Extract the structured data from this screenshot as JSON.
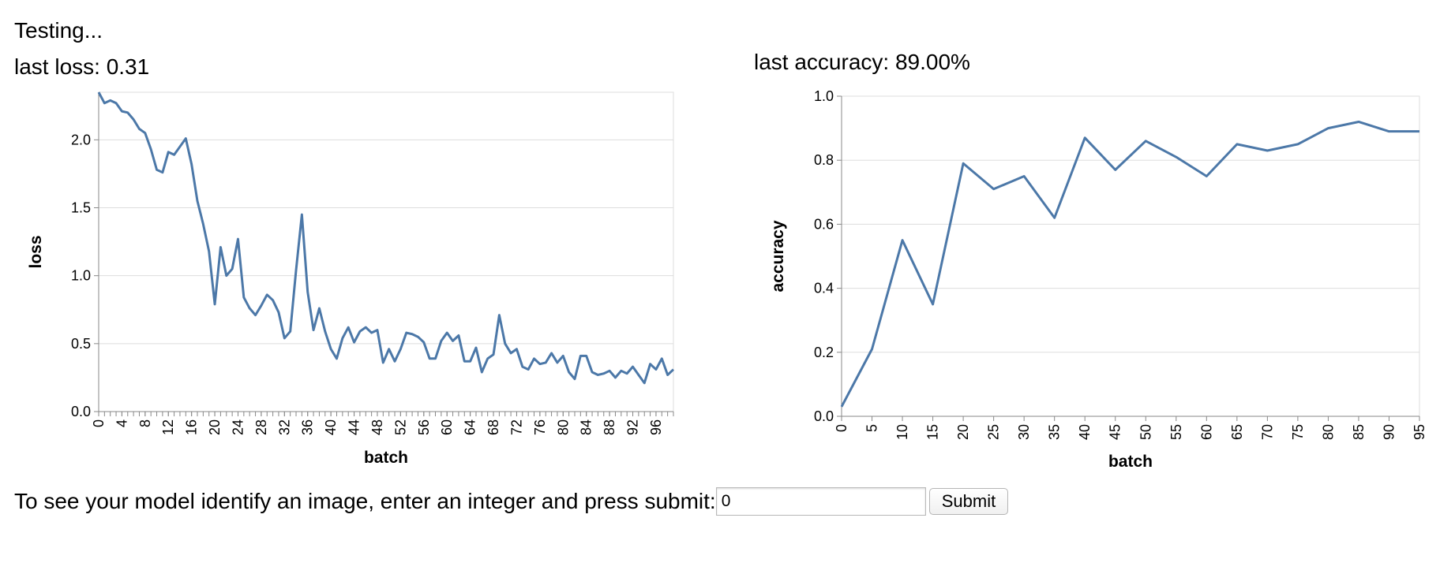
{
  "status": "Testing...",
  "loss_metric": "last loss: 0.31",
  "accuracy_metric": "last accuracy: 89.00%",
  "prompt": {
    "label": "To see your model identify an image, enter an integer and press submit:",
    "input_value": "0",
    "submit_label": "Submit"
  },
  "colors": {
    "line": "#4c78a8",
    "grid": "#dddddd",
    "axis": "#888888"
  },
  "chart_data": [
    {
      "type": "line",
      "xlabel": "batch",
      "ylabel": "loss",
      "xlim": [
        0,
        99
      ],
      "ylim": [
        0,
        2.35
      ],
      "x_ticks": [
        0,
        4,
        8,
        12,
        16,
        20,
        24,
        28,
        32,
        36,
        40,
        44,
        48,
        52,
        56,
        60,
        64,
        68,
        72,
        76,
        80,
        84,
        88,
        92,
        96
      ],
      "y_ticks": [
        0.0,
        0.5,
        1.0,
        1.5,
        2.0
      ],
      "y_tick_labels": [
        "0.0",
        "0.5",
        "1.0",
        "1.5",
        "2.0"
      ],
      "grid": true,
      "x": [
        0,
        1,
        2,
        3,
        4,
        5,
        6,
        7,
        8,
        9,
        10,
        11,
        12,
        13,
        14,
        15,
        16,
        17,
        18,
        19,
        20,
        21,
        22,
        23,
        24,
        25,
        26,
        27,
        28,
        29,
        30,
        31,
        32,
        33,
        34,
        35,
        36,
        37,
        38,
        39,
        40,
        41,
        42,
        43,
        44,
        45,
        46,
        47,
        48,
        49,
        50,
        51,
        52,
        53,
        54,
        55,
        56,
        57,
        58,
        59,
        60,
        61,
        62,
        63,
        64,
        65,
        66,
        67,
        68,
        69,
        70,
        71,
        72,
        73,
        74,
        75,
        76,
        77,
        78,
        79,
        80,
        81,
        82,
        83,
        84,
        85,
        86,
        87,
        88,
        89,
        90,
        91,
        92,
        93,
        94,
        95,
        96,
        97,
        98,
        99
      ],
      "y": [
        2.35,
        2.27,
        2.29,
        2.27,
        2.21,
        2.2,
        2.15,
        2.08,
        2.05,
        1.93,
        1.78,
        1.76,
        1.91,
        1.89,
        1.95,
        2.01,
        1.82,
        1.55,
        1.38,
        1.18,
        0.79,
        1.21,
        1.0,
        1.05,
        1.27,
        0.84,
        0.76,
        0.71,
        0.78,
        0.86,
        0.82,
        0.73,
        0.54,
        0.59,
        1.04,
        1.45,
        0.88,
        0.6,
        0.76,
        0.59,
        0.46,
        0.39,
        0.54,
        0.62,
        0.51,
        0.59,
        0.62,
        0.58,
        0.6,
        0.36,
        0.46,
        0.37,
        0.46,
        0.58,
        0.57,
        0.55,
        0.51,
        0.39,
        0.39,
        0.52,
        0.58,
        0.52,
        0.56,
        0.37,
        0.37,
        0.47,
        0.29,
        0.39,
        0.42,
        0.71,
        0.5,
        0.43,
        0.46,
        0.33,
        0.31,
        0.39,
        0.35,
        0.36,
        0.43,
        0.36,
        0.41,
        0.29,
        0.24,
        0.41,
        0.41,
        0.29,
        0.27,
        0.28,
        0.3,
        0.25,
        0.3,
        0.28,
        0.33,
        0.27,
        0.21,
        0.35,
        0.31,
        0.39,
        0.27,
        0.31
      ]
    },
    {
      "type": "line",
      "xlabel": "batch",
      "ylabel": "accuracy",
      "xlim": [
        0,
        95
      ],
      "ylim": [
        0,
        1.0
      ],
      "x_ticks": [
        0,
        5,
        10,
        15,
        20,
        25,
        30,
        35,
        40,
        45,
        50,
        55,
        60,
        65,
        70,
        75,
        80,
        85,
        90,
        95
      ],
      "y_ticks": [
        0.0,
        0.2,
        0.4,
        0.6,
        0.8,
        1.0
      ],
      "y_tick_labels": [
        "0.0",
        "0.2",
        "0.4",
        "0.6",
        "0.8",
        "1.0"
      ],
      "grid": true,
      "x": [
        0,
        5,
        10,
        15,
        20,
        25,
        30,
        35,
        40,
        45,
        50,
        55,
        60,
        65,
        70,
        75,
        80,
        85,
        90,
        95
      ],
      "y": [
        0.03,
        0.21,
        0.55,
        0.35,
        0.79,
        0.71,
        0.75,
        0.62,
        0.87,
        0.77,
        0.86,
        0.81,
        0.75,
        0.85,
        0.83,
        0.85,
        0.9,
        0.92,
        0.89,
        0.89
      ]
    }
  ]
}
